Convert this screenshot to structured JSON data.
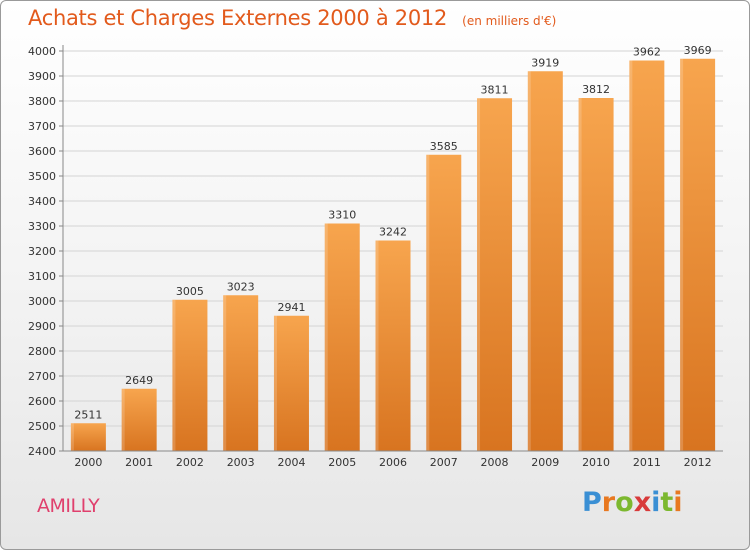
{
  "header": {
    "title": "Achats et Charges Externes 2000 à 2012",
    "subtitle": "(en milliers d'€)"
  },
  "footer": {
    "location": "AMILLY",
    "logo": {
      "text": "Proxiti",
      "colors": [
        "#3a8fd4",
        "#e87820",
        "#7cb82f",
        "#d83a3a",
        "#3a8fd4",
        "#7cb82f",
        "#e87820"
      ]
    }
  },
  "colors": {
    "bar_top": "#f7a54e",
    "bar_bottom": "#d87420",
    "title": "#e25a1c",
    "location": "#e0406d"
  },
  "chart_data": {
    "type": "bar",
    "categories": [
      "2000",
      "2001",
      "2002",
      "2003",
      "2004",
      "2005",
      "2006",
      "2007",
      "2008",
      "2009",
      "2010",
      "2011",
      "2012"
    ],
    "values": [
      2511,
      2649,
      3005,
      3023,
      2941,
      3310,
      3242,
      3585,
      3811,
      3919,
      3812,
      3962,
      3969
    ],
    "title": "Achats et Charges Externes 2000 à 2012",
    "ylim": [
      2400,
      4000
    ],
    "yticks": [
      2400,
      2500,
      2600,
      2700,
      2800,
      2900,
      3000,
      3100,
      3200,
      3300,
      3400,
      3500,
      3600,
      3700,
      3800,
      3900,
      4000
    ],
    "grid": true,
    "data_labels": true
  }
}
